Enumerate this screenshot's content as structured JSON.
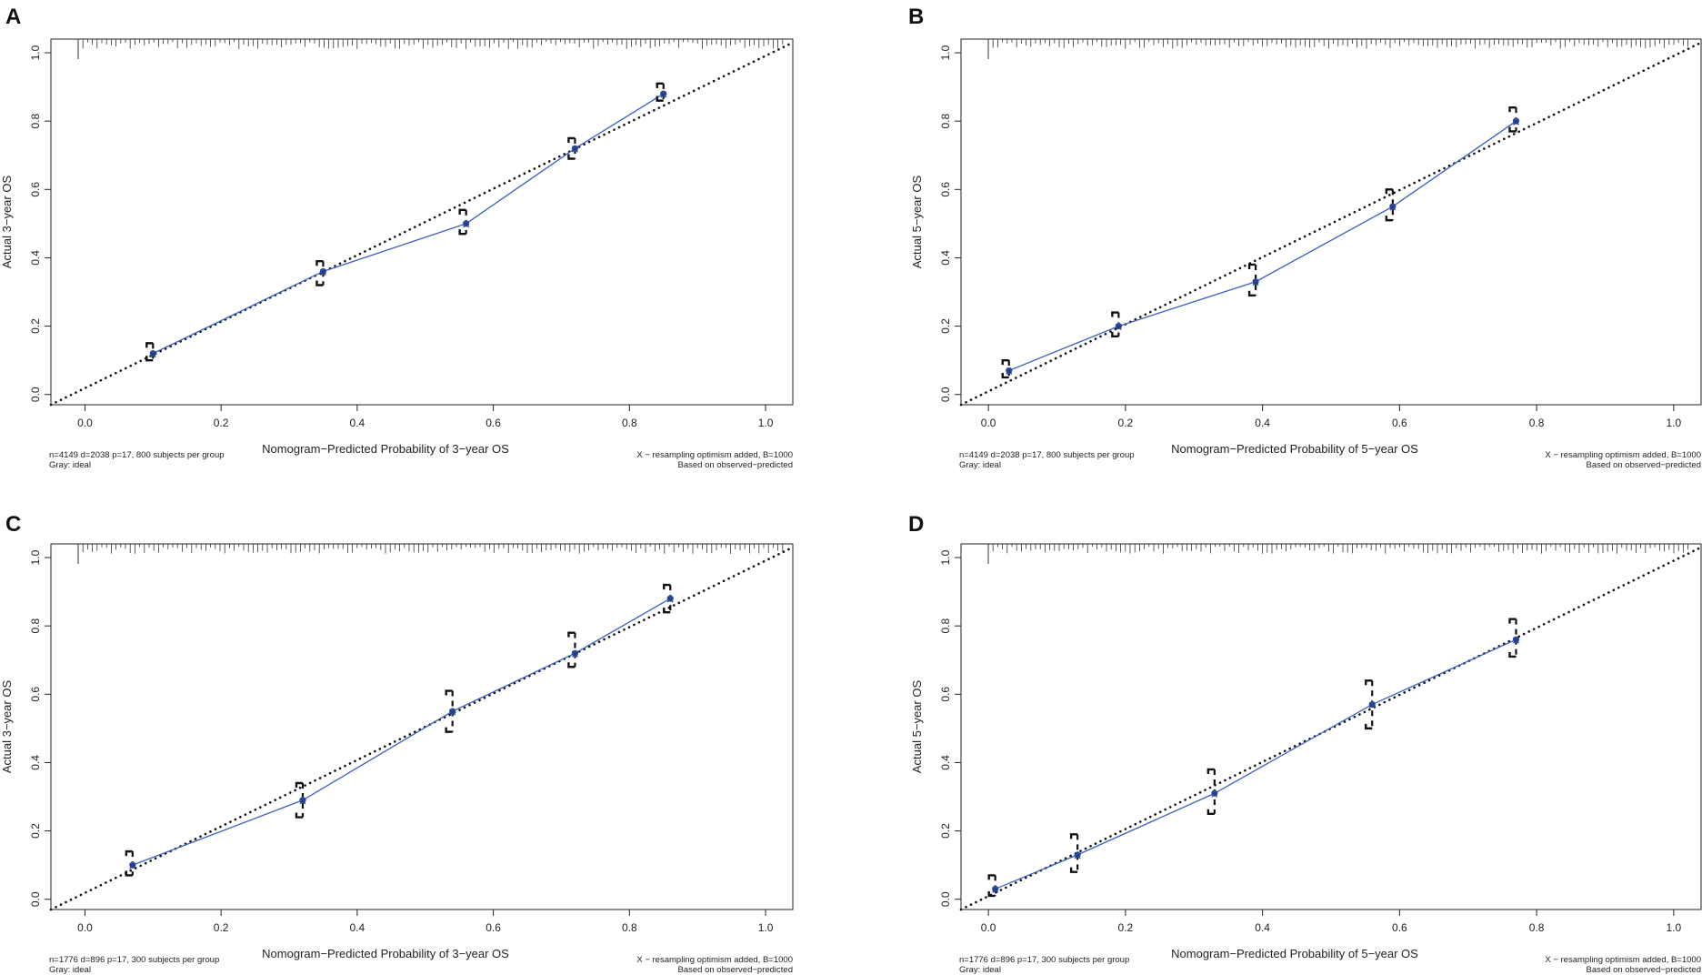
{
  "colors": {
    "calibration_line": "#3b5fbf",
    "marker": "#2a4ea3",
    "ideal": "#111111",
    "frame": "#222222"
  },
  "chart_data": [
    {
      "panel": "A",
      "type": "line",
      "title": "",
      "xlabel": "Nomogram−Predicted Probability of 3−year OS",
      "ylabel": "Actual 3−year OS",
      "xlim": [
        -0.05,
        1.04
      ],
      "ylim": [
        -0.03,
        1.04
      ],
      "xticks": [
        "0.0",
        "0.2",
        "0.4",
        "0.6",
        "0.8",
        "1.0"
      ],
      "yticks": [
        "0.0",
        "0.2",
        "0.4",
        "0.6",
        "0.8",
        "1.0"
      ],
      "ideal_line": [
        [
          -0.05,
          -0.03
        ],
        [
          1.04,
          1.03
        ]
      ],
      "series": [
        {
          "name": "calibration",
          "x": [
            0.1,
            0.35,
            0.56,
            0.72,
            0.85
          ],
          "y": [
            0.12,
            0.36,
            0.5,
            0.72,
            0.88
          ],
          "ci_low": [
            0.1,
            0.32,
            0.47,
            0.69,
            0.86
          ],
          "ci_high": [
            0.15,
            0.39,
            0.54,
            0.75,
            0.91
          ]
        }
      ],
      "footnote_left": [
        "n=4149 d=2038 p=17, 800 subjects per group",
        "Gray: ideal"
      ],
      "footnote_right": [
        "X − resampling optimism added, B=1000",
        "Based on observed−predicted"
      ]
    },
    {
      "panel": "B",
      "type": "line",
      "title": "",
      "xlabel": "Nomogram−Predicted Probability of 5−year OS",
      "ylabel": "Actual 5−year OS",
      "xlim": [
        -0.04,
        1.04
      ],
      "ylim": [
        -0.03,
        1.04
      ],
      "xticks": [
        "0.0",
        "0.2",
        "0.4",
        "0.6",
        "0.8",
        "1.0"
      ],
      "yticks": [
        "0.0",
        "0.2",
        "0.4",
        "0.6",
        "0.8",
        "1.0"
      ],
      "ideal_line": [
        [
          -0.04,
          -0.03
        ],
        [
          1.04,
          1.03
        ]
      ],
      "series": [
        {
          "name": "calibration",
          "x": [
            0.03,
            0.19,
            0.39,
            0.59,
            0.77
          ],
          "y": [
            0.07,
            0.2,
            0.33,
            0.55,
            0.8
          ],
          "ci_low": [
            0.05,
            0.17,
            0.29,
            0.51,
            0.77
          ],
          "ci_high": [
            0.1,
            0.24,
            0.38,
            0.6,
            0.84
          ]
        }
      ],
      "footnote_left": [
        "n=4149 d=2038 p=17, 800 subjects per group",
        "Gray: ideal"
      ],
      "footnote_right": [
        "X − resampling optimism added, B=1000",
        "Based on observed−predicted"
      ]
    },
    {
      "panel": "C",
      "type": "line",
      "title": "",
      "xlabel": "Nomogram−Predicted Probability of 3−year OS",
      "ylabel": "Actual 3−year OS",
      "xlim": [
        -0.05,
        1.04
      ],
      "ylim": [
        -0.03,
        1.04
      ],
      "xticks": [
        "0.0",
        "0.2",
        "0.4",
        "0.6",
        "0.8",
        "1.0"
      ],
      "yticks": [
        "0.0",
        "0.2",
        "0.4",
        "0.6",
        "0.8",
        "1.0"
      ],
      "ideal_line": [
        [
          -0.05,
          -0.03
        ],
        [
          1.04,
          1.03
        ]
      ],
      "series": [
        {
          "name": "calibration",
          "x": [
            0.07,
            0.32,
            0.54,
            0.72,
            0.86
          ],
          "y": [
            0.1,
            0.29,
            0.55,
            0.72,
            0.88
          ],
          "ci_low": [
            0.07,
            0.24,
            0.49,
            0.68,
            0.84
          ],
          "ci_high": [
            0.14,
            0.34,
            0.61,
            0.78,
            0.92
          ]
        }
      ],
      "footnote_left": [
        "n=1776 d=896 p=17, 300 subjects per group",
        "Gray: ideal"
      ],
      "footnote_right": [
        "X − resampling optimism added, B=1000",
        "Based on observed−predicted"
      ]
    },
    {
      "panel": "D",
      "type": "line",
      "title": "",
      "xlabel": "Nomogram−Predicted Probability of 5−year OS",
      "ylabel": "Actual 5−year OS",
      "xlim": [
        -0.04,
        1.04
      ],
      "ylim": [
        -0.03,
        1.04
      ],
      "xticks": [
        "0.0",
        "0.2",
        "0.4",
        "0.6",
        "0.8",
        "1.0"
      ],
      "yticks": [
        "0.0",
        "0.2",
        "0.4",
        "0.6",
        "0.8",
        "1.0"
      ],
      "ideal_line": [
        [
          -0.04,
          -0.03
        ],
        [
          1.04,
          1.03
        ]
      ],
      "series": [
        {
          "name": "calibration",
          "x": [
            0.01,
            0.13,
            0.33,
            0.56,
            0.77
          ],
          "y": [
            0.03,
            0.13,
            0.31,
            0.57,
            0.76
          ],
          "ci_low": [
            0.01,
            0.08,
            0.25,
            0.5,
            0.71
          ],
          "ci_high": [
            0.07,
            0.19,
            0.38,
            0.64,
            0.82
          ]
        }
      ],
      "footnote_left": [
        "n=1776 d=896 p=17, 300 subjects per group",
        "Gray: ideal"
      ],
      "footnote_right": [
        "X − resampling optimism added, B=1000",
        "Based on observed−predicted"
      ]
    }
  ]
}
